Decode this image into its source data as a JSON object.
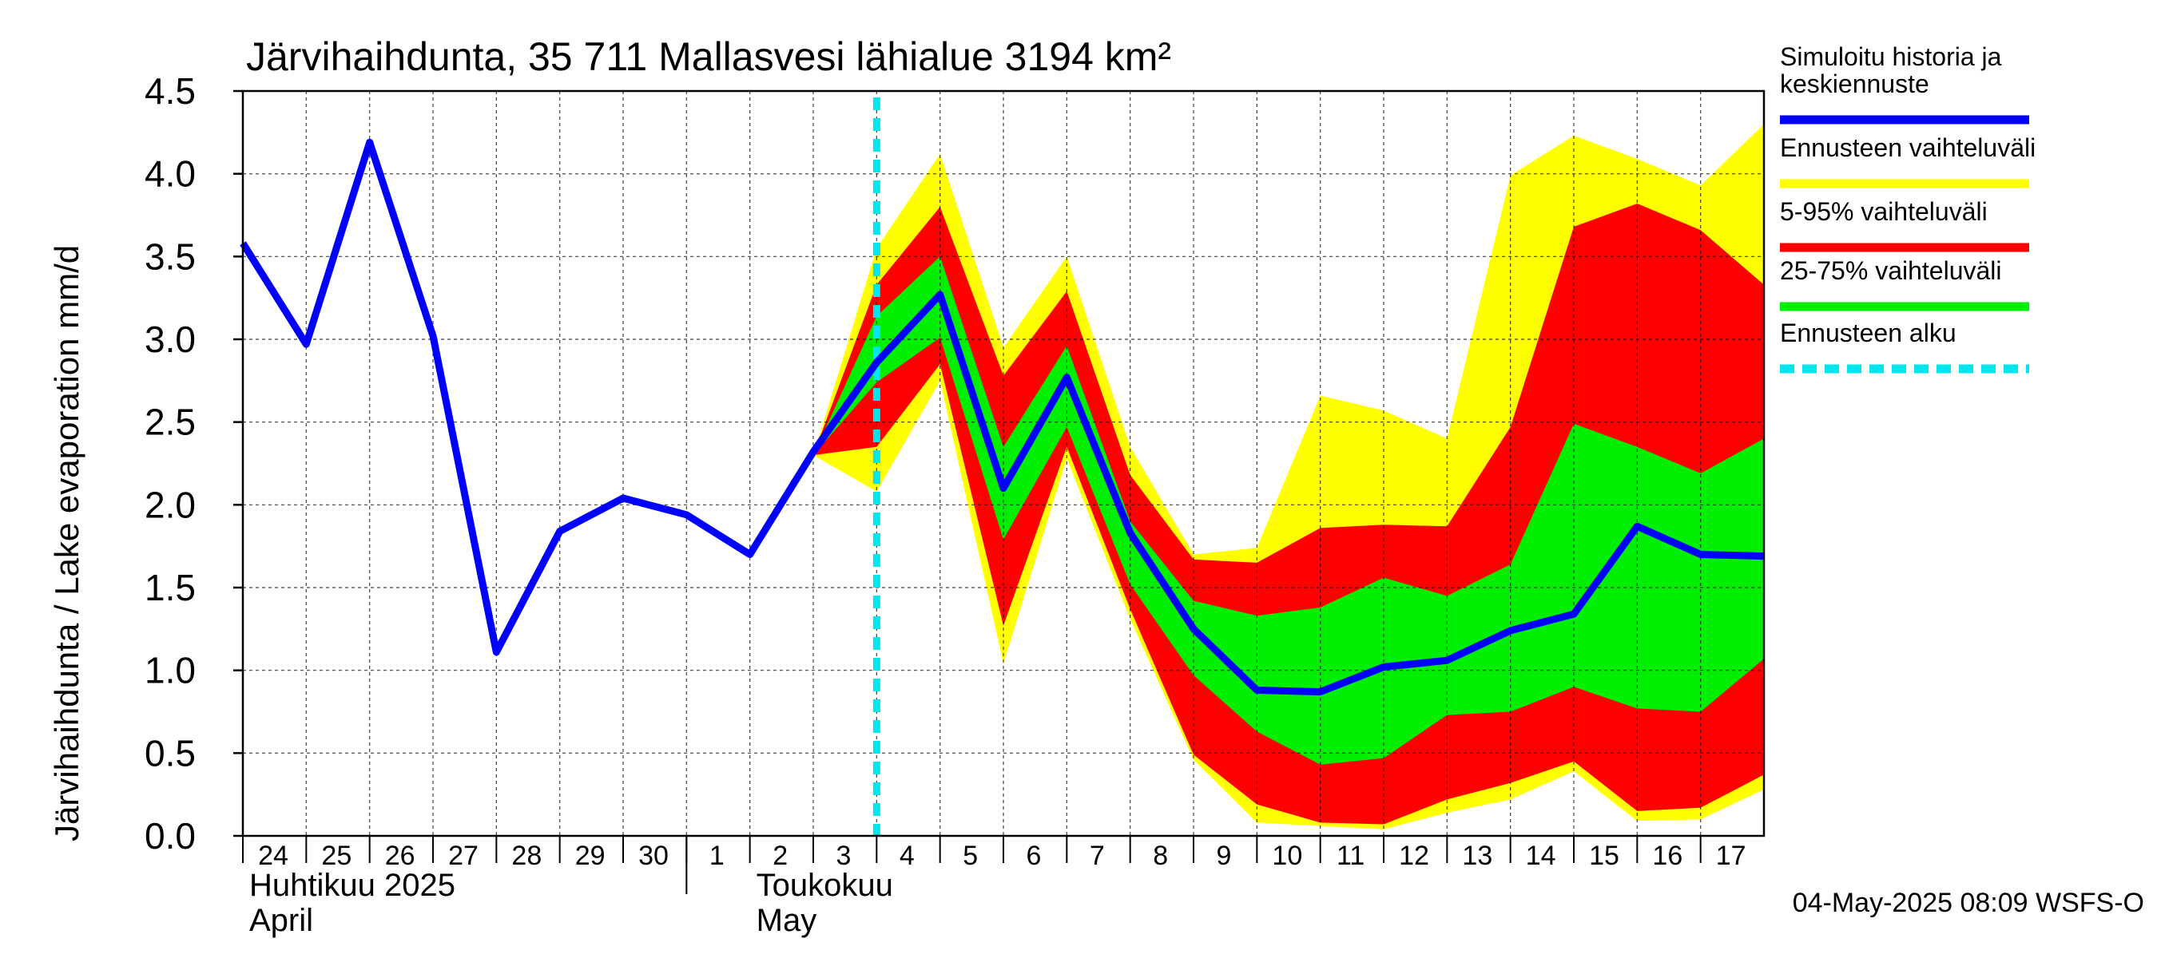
{
  "chart_data": {
    "type": "area",
    "title": "Järvihaihdunta, 35 711 Mallasvesi lähialue 3194 km²",
    "ylabel": "Järvihaihdunta / Lake evaporation   mm/d",
    "ylim": [
      0,
      4.5
    ],
    "yticks": [
      "0.0",
      "0.5",
      "1.0",
      "1.5",
      "2.0",
      "2.5",
      "3.0",
      "3.5",
      "4.0",
      "4.5"
    ],
    "xlim": [
      0,
      24
    ],
    "x_tick_labels": [
      "24",
      "25",
      "26",
      "27",
      "28",
      "29",
      "30",
      "1",
      "2",
      "3",
      "4",
      "5",
      "6",
      "7",
      "8",
      "9",
      "10",
      "11",
      "12",
      "13",
      "14",
      "15",
      "16",
      "17"
    ],
    "month_labels": [
      {
        "line1": "Huhtikuu  2025",
        "line2": "April"
      },
      {
        "line1": "Toukokuu",
        "line2": "May"
      }
    ],
    "forecast_start_x": 10,
    "grid": true,
    "legend_position": "right",
    "legend": [
      {
        "label": "Simuloitu historia ja\nkeskiennuste",
        "color": "#0000ff",
        "style": "solid"
      },
      {
        "label": "Ennusteen vaihteluväli",
        "color": "#ffff00",
        "style": "solid"
      },
      {
        "label": "5-95% vaihteluväli",
        "color": "#ff0000",
        "style": "solid"
      },
      {
        "label": "25-75% vaihteluväli",
        "color": "#00ee00",
        "style": "solid"
      },
      {
        "label": "Ennusteen alku",
        "color": "#00e5ee",
        "style": "dashed"
      }
    ],
    "series": [
      {
        "name": "Simuloitu historia ja keskiennuste",
        "x": [
          0,
          1,
          2,
          3,
          4,
          5,
          6,
          7,
          8,
          9,
          10,
          11,
          12,
          13,
          14,
          15,
          16,
          17,
          18,
          19,
          20,
          21,
          22,
          23,
          24
        ],
        "values": [
          3.58,
          2.97,
          4.19,
          3.02,
          1.11,
          1.84,
          2.04,
          1.94,
          1.7,
          2.32,
          2.86,
          3.27,
          2.1,
          2.77,
          1.83,
          1.25,
          0.88,
          0.87,
          1.02,
          1.06,
          1.24,
          1.34,
          1.87,
          1.7,
          1.69
        ]
      }
    ],
    "bands": [
      {
        "name": "Ennusteen vaihteluväli",
        "color": "#ffff00",
        "x": [
          9,
          10,
          11,
          12,
          13,
          14,
          15,
          16,
          17,
          18,
          19,
          20,
          21,
          22,
          23,
          24
        ],
        "lower": [
          2.3,
          2.08,
          2.75,
          1.04,
          2.28,
          1.31,
          0.46,
          0.08,
          0.06,
          0.04,
          0.14,
          0.22,
          0.39,
          0.09,
          0.1,
          0.28
        ],
        "upper": [
          2.3,
          3.55,
          4.12,
          2.95,
          3.5,
          2.35,
          1.7,
          1.74,
          2.66,
          2.57,
          2.4,
          3.99,
          4.23,
          4.09,
          3.93,
          4.3
        ]
      },
      {
        "name": "5-95% vaihteluväli",
        "color": "#ff0000",
        "x": [
          9,
          10,
          11,
          12,
          13,
          14,
          15,
          16,
          17,
          18,
          19,
          20,
          21,
          22,
          23,
          24
        ],
        "lower": [
          2.3,
          2.35,
          2.85,
          1.27,
          2.35,
          1.37,
          0.49,
          0.19,
          0.08,
          0.07,
          0.22,
          0.32,
          0.45,
          0.15,
          0.17,
          0.37
        ],
        "upper": [
          2.3,
          3.33,
          3.8,
          2.78,
          3.29,
          2.18,
          1.67,
          1.65,
          1.86,
          1.88,
          1.87,
          2.47,
          3.68,
          3.82,
          3.66,
          3.33
        ]
      },
      {
        "name": "25-75% vaihteluväli",
        "color": "#00ee00",
        "x": [
          9,
          10,
          11,
          12,
          13,
          14,
          15,
          16,
          17,
          18,
          19,
          20,
          21,
          22,
          23,
          24
        ],
        "lower": [
          2.3,
          2.74,
          3.01,
          1.79,
          2.47,
          1.52,
          0.97,
          0.63,
          0.43,
          0.47,
          0.73,
          0.75,
          0.9,
          0.77,
          0.75,
          1.07
        ],
        "upper": [
          2.3,
          3.14,
          3.5,
          2.35,
          2.96,
          1.9,
          1.42,
          1.33,
          1.38,
          1.56,
          1.45,
          1.64,
          2.49,
          2.35,
          2.19,
          2.4
        ]
      }
    ]
  },
  "footer": {
    "timestamp": "04-May-2025 08:09 WSFS-O"
  }
}
